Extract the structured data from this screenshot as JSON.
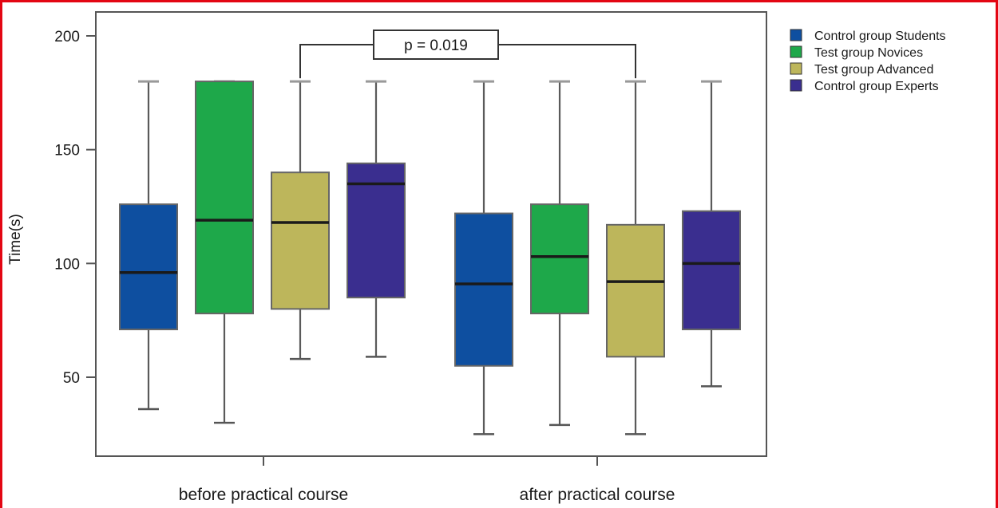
{
  "chart_data": {
    "type": "box",
    "ylabel": "Time(s)",
    "ylim": [
      20,
      200
    ],
    "yticks": [
      50,
      100,
      150,
      200
    ],
    "categories": [
      "before practical course",
      "after practical course"
    ],
    "series": [
      {
        "name": "Control group Students",
        "color": "#0e4fa0",
        "boxes": [
          {
            "min": 36,
            "q1": 71,
            "median": 96,
            "q3": 126,
            "max": 180
          },
          {
            "min": 25,
            "q1": 55,
            "median": 91,
            "q3": 122,
            "max": 180
          }
        ]
      },
      {
        "name": "Test group Novices",
        "color": "#1ea84a",
        "boxes": [
          {
            "min": 30,
            "q1": 78,
            "median": 119,
            "q3": 180,
            "max": 180
          },
          {
            "min": 29,
            "q1": 78,
            "median": 103,
            "q3": 126,
            "max": 180
          }
        ]
      },
      {
        "name": "Test group Advanced",
        "color": "#bdb65b",
        "boxes": [
          {
            "min": 58,
            "q1": 80,
            "median": 118,
            "q3": 140,
            "max": 180
          },
          {
            "min": 25,
            "q1": 59,
            "median": 92,
            "q3": 117,
            "max": 180
          }
        ]
      },
      {
        "name": "Control group Experts",
        "color": "#3a2e8f",
        "boxes": [
          {
            "min": 59,
            "q1": 85,
            "median": 135,
            "q3": 144,
            "max": 180
          },
          {
            "min": 46,
            "q1": 71,
            "median": 100,
            "q3": 123,
            "max": 180
          }
        ]
      }
    ],
    "annotations": [
      {
        "text": "p = 0.019",
        "from": {
          "category": 0,
          "series": 2
        },
        "to": {
          "category": 1,
          "series": 2
        }
      }
    ],
    "legend_position": "top-right"
  }
}
